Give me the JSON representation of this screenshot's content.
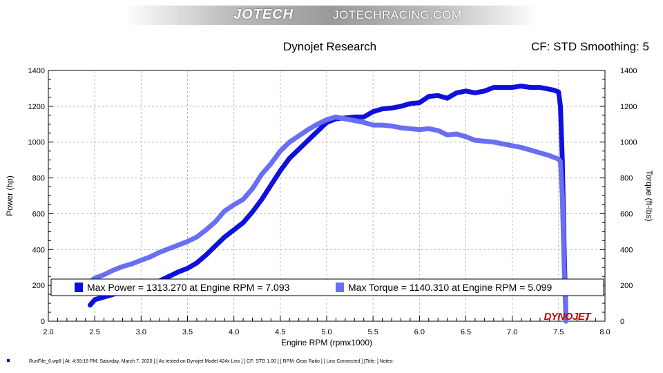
{
  "banner": {
    "brand": "JOTECH",
    "site": "JOTECHRACING.COM"
  },
  "header": {
    "title": "Dynojet Research",
    "right": "CF: STD Smoothing: 5"
  },
  "footer": {
    "text": "RunFile_6.wp8 [ At: 4:59:18 PM, Saturday, March 7, 2020 ] [ As tested on Dynojet Model 424x Linx ] [ CF: STD 1.00 ] [ RPM: Gear Ratio ] [ Linx Connected ] [Title: ]   Notes:"
  },
  "colors": {
    "power": "#1010dc",
    "torque": "#6a6ef2",
    "grid": "#b8b8b8"
  },
  "chart_data": {
    "type": "line",
    "xlabel": "Engine RPM (rpmx1000)",
    "ylabel": "Power (hp)",
    "y2label": "Torque (ft-lbs)",
    "xlim": [
      2.0,
      8.0
    ],
    "ylim": [
      0,
      1400
    ],
    "y2lim": [
      0,
      1400
    ],
    "x_ticks": [
      "2.0",
      "2.5",
      "3.0",
      "3.5",
      "4.0",
      "4.5",
      "5.0",
      "5.5",
      "6.0",
      "6.5",
      "7.0",
      "7.5",
      "8.0"
    ],
    "y_ticks": [
      "0",
      "200",
      "400",
      "600",
      "800",
      "1000",
      "1200",
      "1400"
    ],
    "grid": true,
    "logo": "DYNOJET",
    "legend": [
      {
        "label": "Max Power = 1313.270 at Engine RPM = 7.093",
        "color": "#1010dc"
      },
      {
        "label": "Max Torque = 1140.310 at Engine RPM = 5.099",
        "color": "#6a6ef2"
      }
    ],
    "series": [
      {
        "name": "Power",
        "axis": "left",
        "color": "#1010dc",
        "x": [
          2.45,
          2.5,
          2.6,
          2.7,
          2.8,
          2.9,
          3.0,
          3.1,
          3.2,
          3.3,
          3.4,
          3.5,
          3.6,
          3.7,
          3.8,
          3.9,
          4.0,
          4.1,
          4.2,
          4.3,
          4.4,
          4.5,
          4.6,
          4.7,
          4.8,
          4.9,
          5.0,
          5.1,
          5.2,
          5.3,
          5.4,
          5.5,
          5.6,
          5.7,
          5.8,
          5.9,
          6.0,
          6.1,
          6.2,
          6.3,
          6.4,
          6.5,
          6.6,
          6.7,
          6.8,
          6.9,
          7.0,
          7.093,
          7.2,
          7.3,
          7.4,
          7.45,
          7.5,
          7.52,
          7.54,
          7.56,
          7.58
        ],
        "y": [
          90,
          120,
          135,
          150,
          162,
          178,
          190,
          205,
          225,
          250,
          275,
          295,
          325,
          370,
          420,
          470,
          510,
          550,
          610,
          680,
          760,
          840,
          910,
          960,
          1010,
          1060,
          1110,
          1130,
          1135,
          1140,
          1140,
          1170,
          1185,
          1190,
          1200,
          1215,
          1220,
          1255,
          1260,
          1245,
          1275,
          1285,
          1275,
          1285,
          1305,
          1305,
          1305,
          1313,
          1305,
          1305,
          1295,
          1290,
          1280,
          1200,
          900,
          400,
          0
        ]
      },
      {
        "name": "Torque",
        "axis": "right",
        "color": "#6a6ef2",
        "x": [
          2.45,
          2.5,
          2.6,
          2.7,
          2.8,
          2.9,
          3.0,
          3.1,
          3.2,
          3.3,
          3.4,
          3.5,
          3.6,
          3.7,
          3.8,
          3.9,
          4.0,
          4.1,
          4.2,
          4.3,
          4.4,
          4.5,
          4.6,
          4.7,
          4.8,
          4.9,
          5.0,
          5.099,
          5.2,
          5.3,
          5.4,
          5.5,
          5.6,
          5.7,
          5.8,
          5.9,
          6.0,
          6.1,
          6.2,
          6.3,
          6.4,
          6.5,
          6.6,
          6.7,
          6.8,
          6.9,
          7.0,
          7.1,
          7.2,
          7.3,
          7.4,
          7.45,
          7.5,
          7.52,
          7.54,
          7.56,
          7.58
        ],
        "y": [
          220,
          240,
          260,
          285,
          305,
          320,
          340,
          360,
          385,
          405,
          425,
          445,
          470,
          510,
          555,
          615,
          650,
          680,
          740,
          820,
          880,
          950,
          1000,
          1035,
          1070,
          1100,
          1125,
          1140,
          1130,
          1120,
          1110,
          1095,
          1095,
          1090,
          1080,
          1075,
          1070,
          1075,
          1065,
          1040,
          1045,
          1030,
          1010,
          1005,
          1000,
          990,
          980,
          970,
          955,
          940,
          925,
          915,
          905,
          890,
          700,
          300,
          0
        ]
      }
    ]
  }
}
